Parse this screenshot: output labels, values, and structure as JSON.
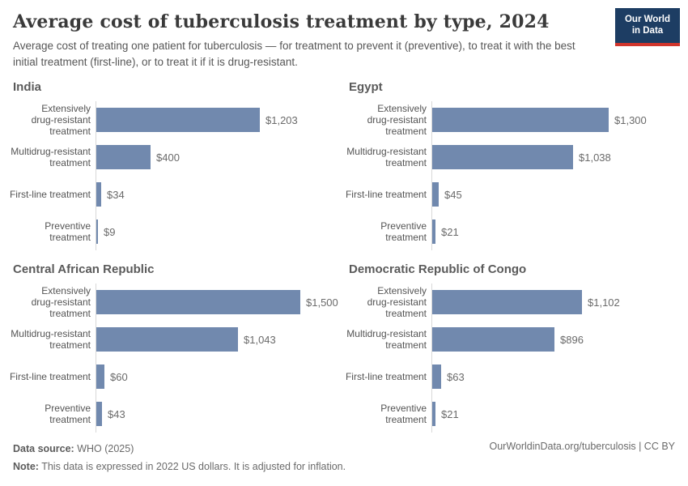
{
  "header": {
    "title": "Average cost of tuberculosis treatment by type, 2024",
    "subtitle": "Average cost of treating one patient for tuberculosis — for treatment to prevent it (preventive), to treat it with the best initial treatment (first-line), or to treat it if it is drug-resistant.",
    "logo": {
      "line1": "Our World",
      "line2": "in Data"
    }
  },
  "chart_data": {
    "type": "bar",
    "orientation": "horizontal",
    "categories": [
      "Extensively drug-resistant treatment",
      "Multidrug-resistant treatment",
      "First-line treatment",
      "Preventive treatment"
    ],
    "category_lines": [
      "Extensively\ndrug-resistant\ntreatment",
      "Multidrug-resistant\ntreatment",
      "First-line treatment",
      "Preventive\ntreatment"
    ],
    "panels": [
      {
        "title": "India",
        "values": [
          1203,
          400,
          34,
          9
        ],
        "value_labels": [
          "$1,203",
          "$400",
          "$34",
          "$9"
        ]
      },
      {
        "title": "Egypt",
        "values": [
          1300,
          1038,
          45,
          21
        ],
        "value_labels": [
          "$1,300",
          "$1,038",
          "$45",
          "$21"
        ]
      },
      {
        "title": "Central African Republic",
        "values": [
          1500,
          1043,
          60,
          43
        ],
        "value_labels": [
          "$1,500",
          "$1,043",
          "$60",
          "$43"
        ]
      },
      {
        "title": "Democratic Republic of Congo",
        "values": [
          1102,
          896,
          63,
          21
        ],
        "value_labels": [
          "$1,102",
          "$896",
          "$63",
          "$21"
        ]
      }
    ],
    "xlim": [
      0,
      1500
    ],
    "grid": false,
    "legend": "none",
    "bar_color": "#7189ae",
    "axis_line_color": "#d8d8d8"
  },
  "footer": {
    "source_label": "Data source:",
    "source_value": " WHO (2025)",
    "note_label": "Note:",
    "note_value": " This data is expressed in 2022 US dollars. It is adjusted for inflation.",
    "link": "OurWorldinData.org/tuberculosis | CC BY"
  }
}
